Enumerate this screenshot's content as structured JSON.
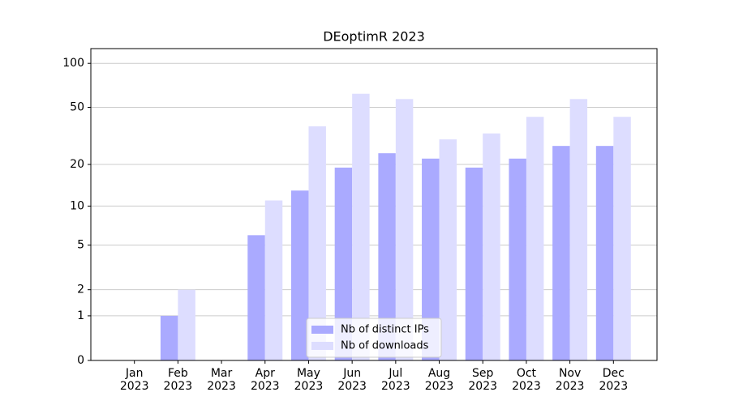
{
  "chart_data": {
    "type": "bar",
    "title": "DEoptimR 2023",
    "categories": [
      "Jan\n2023",
      "Feb\n2023",
      "Mar\n2023",
      "Apr\n2023",
      "May\n2023",
      "Jun\n2023",
      "Jul\n2023",
      "Aug\n2023",
      "Sep\n2023",
      "Oct\n2023",
      "Nov\n2023",
      "Dec\n2023"
    ],
    "series": [
      {
        "name": "Nb of distinct IPs",
        "color": "#aaaaff",
        "values": [
          0,
          1,
          0,
          6,
          13,
          19,
          24,
          22,
          19,
          22,
          27,
          27
        ]
      },
      {
        "name": "Nb of downloads",
        "color": "#ddddff",
        "values": [
          0,
          2,
          0,
          11,
          37,
          62,
          57,
          30,
          33,
          43,
          57,
          43
        ]
      }
    ],
    "y_scale": "log1p",
    "ylim": [
      0,
      126
    ],
    "yticks": [
      0,
      1,
      2,
      5,
      10,
      20,
      50,
      100
    ],
    "grid": true,
    "legend": "lower center"
  }
}
